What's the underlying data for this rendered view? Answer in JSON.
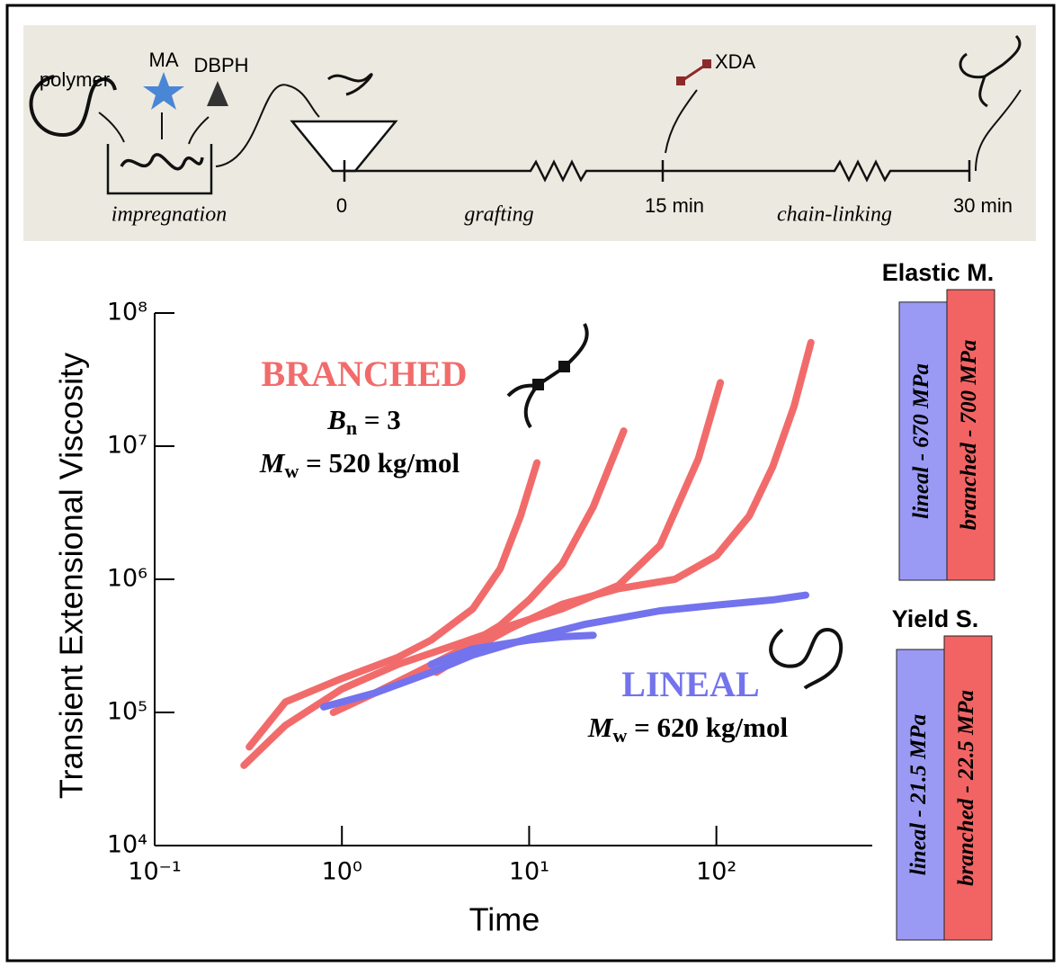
{
  "diagram": {
    "labels": {
      "polymer": "polymer",
      "ma": "MA",
      "dbph": "DBPH",
      "impregnation": "impregnation",
      "xda": "XDA"
    },
    "timeline": {
      "ticks": [
        "0",
        "15 min",
        "30 min"
      ],
      "phases": [
        "grafting",
        "chain-linking"
      ]
    }
  },
  "chart_data": [
    {
      "type": "line",
      "xscale": "log",
      "yscale": "log",
      "xlabel": "Time",
      "ylabel": "Transient Extensional Viscosity",
      "xlim": [
        0.1,
        680
      ],
      "ylim": [
        10000,
        100000000
      ],
      "xticks": [
        {
          "value": 0.1,
          "label": "10⁻¹"
        },
        {
          "value": 1,
          "label": "10⁰"
        },
        {
          "value": 10,
          "label": "10¹"
        },
        {
          "value": 100,
          "label": "10²"
        }
      ],
      "yticks": [
        {
          "value": 10000,
          "label": "10⁴"
        },
        {
          "value": 100000,
          "label": "10⁵"
        },
        {
          "value": 1000000,
          "label": "10⁶"
        },
        {
          "value": 10000000,
          "label": "10⁷"
        },
        {
          "value": 100000000,
          "label": "10⁸"
        }
      ],
      "series": [
        {
          "color": "#f26b6b",
          "x": [
            0.32,
            0.5,
            1,
            2,
            3,
            5,
            7,
            9,
            11
          ],
          "values": [
            55000,
            120000,
            180000,
            260000,
            350000,
            600000,
            1200000,
            3000000,
            7500000
          ]
        },
        {
          "color": "#f26b6b",
          "x": [
            0.9,
            1.5,
            2.5,
            4,
            7,
            10,
            15,
            22,
            32
          ],
          "values": [
            100000,
            140000,
            200000,
            280000,
            450000,
            700000,
            1300000,
            3500000,
            13000000
          ]
        },
        {
          "color": "#f26b6b",
          "x": [
            0.3,
            0.5,
            1,
            2,
            4,
            8,
            15,
            30,
            50,
            80,
            105
          ],
          "values": [
            40000,
            80000,
            150000,
            230000,
            320000,
            450000,
            600000,
            900000,
            1800000,
            8000000,
            30000000
          ]
        },
        {
          "color": "#f26b6b",
          "x": [
            3.2,
            5,
            8,
            15,
            30,
            60,
            100,
            150,
            200,
            260,
            320
          ],
          "values": [
            200000,
            300000,
            430000,
            650000,
            850000,
            1000000,
            1500000,
            3000000,
            7000000,
            20000000,
            60000000
          ]
        },
        {
          "color": "#7373ee",
          "x": [
            0.8,
            1.5,
            3,
            5,
            10,
            20,
            50,
            100,
            200,
            300
          ],
          "values": [
            110000,
            140000,
            200000,
            270000,
            360000,
            460000,
            580000,
            640000,
            700000,
            760000
          ]
        },
        {
          "color": "#7373ee",
          "x": [
            3,
            5,
            10,
            15,
            22
          ],
          "values": [
            230000,
            300000,
            350000,
            370000,
            380000
          ]
        }
      ],
      "annotations": {
        "branched": "BRANCHED",
        "bn": {
          "symbol": "B",
          "subscript": "n",
          "text": " = 3"
        },
        "mw_branched": {
          "symbol": "M",
          "subscript": "w",
          "text": " = 520 kg/mol"
        },
        "lineal": "LINEAL",
        "mw_lineal": {
          "symbol": "M",
          "subscript": "w",
          "text": " = 620 kg/mol"
        }
      }
    },
    {
      "type": "bar",
      "title": "Elastic M.",
      "ylim": [
        0,
        700
      ],
      "series": [
        {
          "color": "#9a9af5",
          "values": [
            670
          ],
          "value_labels": [
            "lineal - 670 MPa"
          ]
        },
        {
          "color": "#f26464",
          "values": [
            700
          ],
          "value_labels": [
            "branched - 700 MPa"
          ]
        }
      ]
    },
    {
      "type": "bar",
      "title": "Yield S.",
      "ylim": [
        0,
        22.5
      ],
      "series": [
        {
          "color": "#9a9af5",
          "values": [
            21.5
          ],
          "value_labels": [
            "lineal - 21.5 MPa"
          ]
        },
        {
          "color": "#f26464",
          "values": [
            22.5
          ],
          "value_labels": [
            "branched - 22.5 MPa"
          ]
        }
      ]
    }
  ]
}
